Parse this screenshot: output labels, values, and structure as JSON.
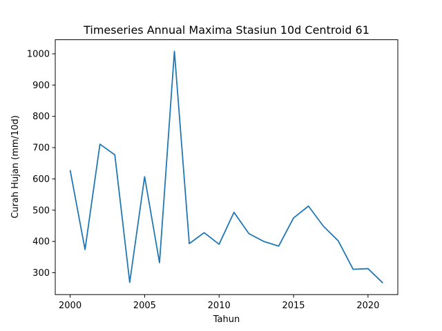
{
  "chart_data": {
    "type": "line",
    "title": "Timeseries Annual Maxima Stasiun 10d Centroid 61",
    "xlabel": "Tahun",
    "ylabel": "Curah Hujan (mm/10d)",
    "x": [
      2000,
      2001,
      2002,
      2003,
      2004,
      2005,
      2006,
      2007,
      2008,
      2009,
      2010,
      2011,
      2012,
      2013,
      2014,
      2015,
      2016,
      2017,
      2018,
      2019,
      2020,
      2021
    ],
    "series": [
      {
        "values": [
          628,
          374,
          711,
          677,
          269,
          607,
          332,
          1008,
          393,
          428,
          391,
          493,
          425,
          400,
          385,
          475,
          513,
          449,
          402,
          311,
          313,
          267
        ],
        "color": "#1f77b4"
      }
    ],
    "xlim": [
      1999,
      2022
    ],
    "ylim": [
      230,
      1045
    ],
    "xticks": [
      "2000",
      "2005",
      "2010",
      "2015",
      "2020"
    ],
    "yticks": [
      "300",
      "400",
      "500",
      "600",
      "700",
      "800",
      "900",
      "1000"
    ],
    "grid": false,
    "legend": "none"
  }
}
